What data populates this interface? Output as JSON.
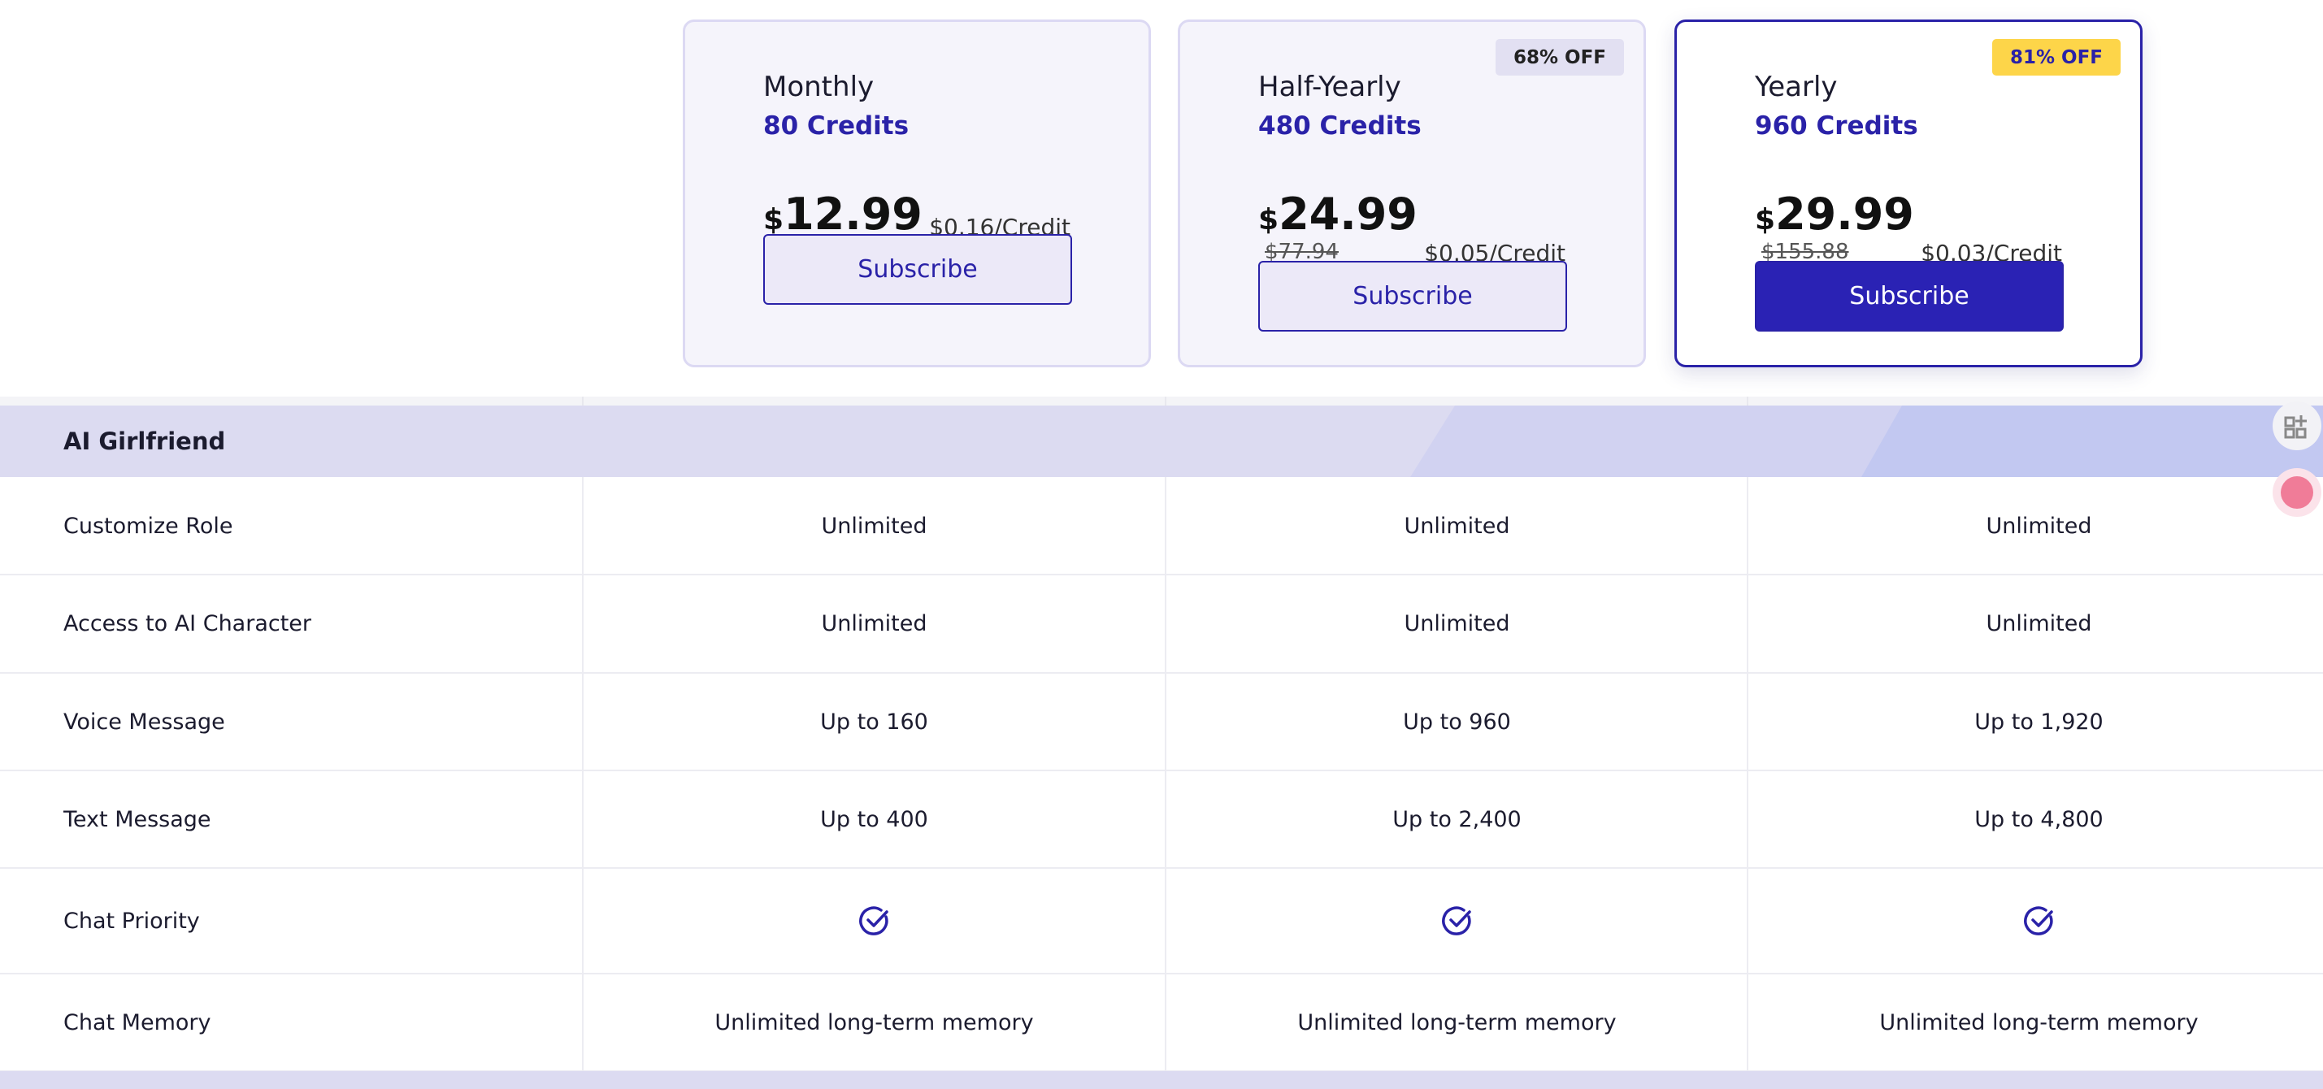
{
  "plans": [
    {
      "name": "Monthly",
      "credits": "80 Credits",
      "currency": "$",
      "price": "12.99",
      "per_credit": "$0.16/Credit",
      "button": "Subscribe"
    },
    {
      "name": "Half-Yearly",
      "credits": "480 Credits",
      "badge": "68% OFF",
      "currency": "$",
      "price": "24.99",
      "original_price": "$77.94",
      "per_credit": "$0.05/Credit",
      "button": "Subscribe"
    },
    {
      "name": "Yearly",
      "credits": "960 Credits",
      "badge": "81% OFF",
      "currency": "$",
      "price": "29.99",
      "original_price": "$155.88",
      "per_credit": "$0.03/Credit",
      "button": "Subscribe"
    }
  ],
  "features": {
    "section": "AI Girlfriend",
    "rows": [
      {
        "label": "Customize Role",
        "values": [
          "Unlimited",
          "Unlimited",
          "Unlimited"
        ]
      },
      {
        "label": "Access to AI Character",
        "values": [
          "Unlimited",
          "Unlimited",
          "Unlimited"
        ]
      },
      {
        "label": "Voice Message",
        "values": [
          "Up to 160",
          "Up to 960",
          "Up to 1,920"
        ]
      },
      {
        "label": "Text Message",
        "values": [
          "Up to 400",
          "Up to 2,400",
          "Up to 4,800"
        ]
      },
      {
        "label": "Chat Priority"
      },
      {
        "label": "Chat Memory",
        "values": [
          "Unlimited long-term memory",
          "Unlimited long-term memory",
          "Unlimited long-term memory"
        ]
      }
    ]
  }
}
